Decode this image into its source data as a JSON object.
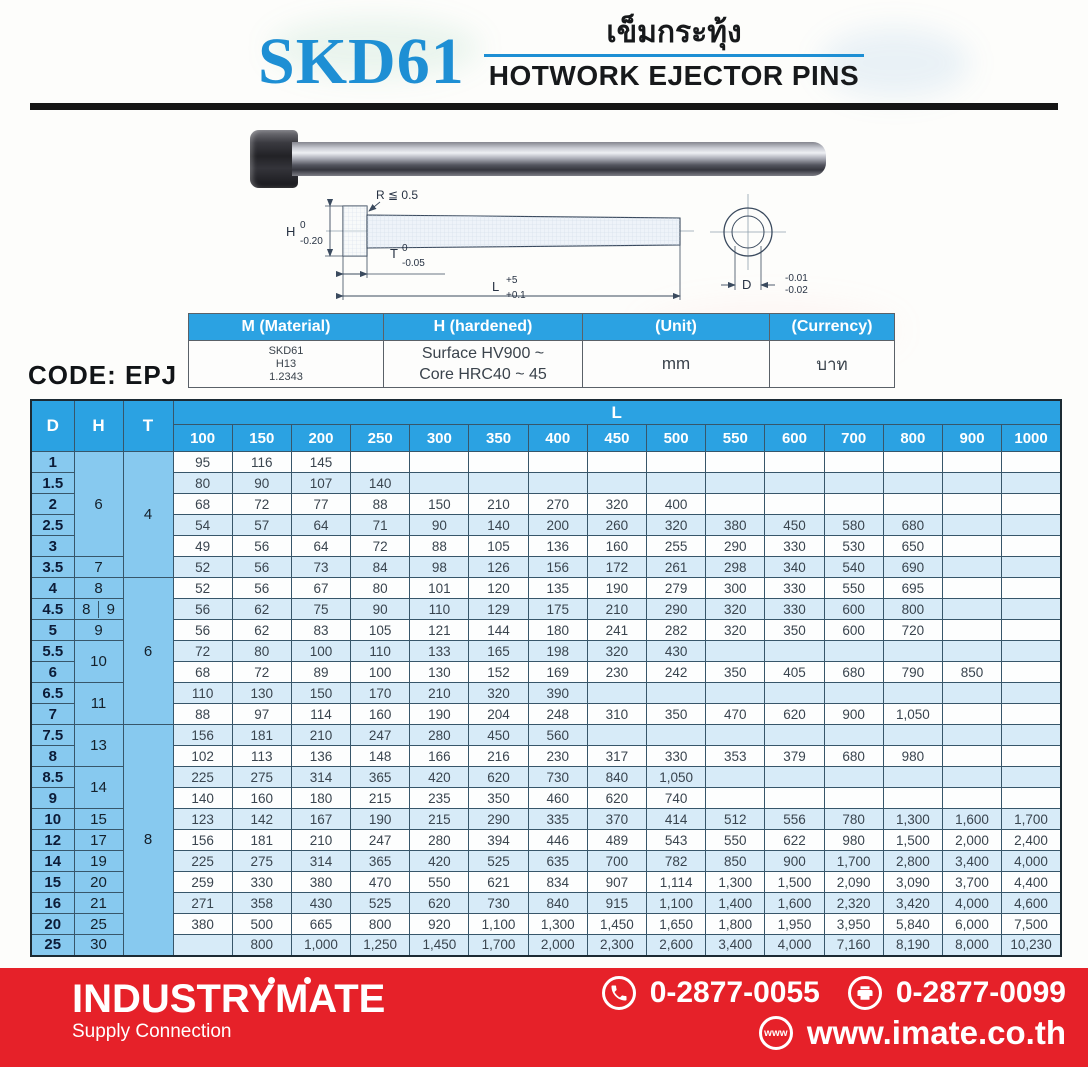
{
  "colors": {
    "brand_blue": "#1e8fd4",
    "table_header_blue": "#2ba2e2",
    "cell_blue": "#87c9ef",
    "row_blue": "#d7ebf8",
    "footer_red": "#e62129"
  },
  "header": {
    "brand": "SKD61",
    "title_thai": "เข็มกระทุ้ง",
    "title_en": "HOTWORK EJECTOR PINS"
  },
  "diagram": {
    "r_label": "R ≦ 0.5",
    "h_label": "H",
    "h_tol_top": "0",
    "h_tol_bottom": "-0.20",
    "t_label": "T",
    "t_tol_top": "0",
    "t_tol_bottom": "-0.05",
    "l_label": "L",
    "l_tol_top": "+5",
    "l_tol_bottom": "+0.1",
    "d_label": "D",
    "d_tol_top": "-0.01",
    "d_tol_bottom": "-0.02"
  },
  "spec_table": {
    "headers": [
      "M (Material)",
      "H (hardened)",
      "(Unit)",
      "(Currency)"
    ],
    "material_lines": [
      "SKD61",
      "H13",
      "1.2343"
    ],
    "hardened_lines": [
      "Surface HV900 ~",
      "Core HRC40 ~ 45"
    ],
    "unit": "mm",
    "currency": "บาท"
  },
  "code_label": "CODE: EPJ",
  "price_table": {
    "col_d": "D",
    "col_h": "H",
    "col_t": "T",
    "col_l": "L",
    "lengths": [
      "100",
      "150",
      "200",
      "250",
      "300",
      "350",
      "400",
      "450",
      "500",
      "550",
      "600",
      "700",
      "800",
      "900",
      "1000"
    ],
    "rows": [
      {
        "d": "1",
        "h": {
          "text": "6",
          "span": 5
        },
        "t": {
          "text": "4",
          "span": 6
        },
        "v": [
          "95",
          "116",
          "145",
          "",
          "",
          "",
          "",
          "",
          "",
          "",
          "",
          "",
          "",
          "",
          ""
        ]
      },
      {
        "d": "1.5",
        "v": [
          "80",
          "90",
          "107",
          "140",
          "",
          "",
          "",
          "",
          "",
          "",
          "",
          "",
          "",
          "",
          ""
        ]
      },
      {
        "d": "2",
        "v": [
          "68",
          "72",
          "77",
          "88",
          "150",
          "210",
          "270",
          "320",
          "400",
          "",
          "",
          "",
          "",
          "",
          ""
        ]
      },
      {
        "d": "2.5",
        "v": [
          "54",
          "57",
          "64",
          "71",
          "90",
          "140",
          "200",
          "260",
          "320",
          "380",
          "450",
          "580",
          "680",
          "",
          ""
        ]
      },
      {
        "d": "3",
        "v": [
          "49",
          "56",
          "64",
          "72",
          "88",
          "105",
          "136",
          "160",
          "255",
          "290",
          "330",
          "530",
          "650",
          "",
          ""
        ]
      },
      {
        "d": "3.5",
        "h": {
          "text": "7",
          "span": 1
        },
        "v": [
          "52",
          "56",
          "73",
          "84",
          "98",
          "126",
          "156",
          "172",
          "261",
          "298",
          "340",
          "540",
          "690",
          "",
          ""
        ]
      },
      {
        "d": "4",
        "h": {
          "text": "8",
          "span": 1
        },
        "t": {
          "text": "6",
          "span": 7
        },
        "v": [
          "52",
          "56",
          "67",
          "80",
          "101",
          "120",
          "135",
          "190",
          "279",
          "300",
          "330",
          "550",
          "695",
          "",
          ""
        ]
      },
      {
        "d": "4.5",
        "h_split": [
          "8",
          "9"
        ],
        "v": [
          "56",
          "62",
          "75",
          "90",
          "110",
          "129",
          "175",
          "210",
          "290",
          "320",
          "330",
          "600",
          "800",
          "",
          ""
        ]
      },
      {
        "d": "5",
        "h": {
          "text": "9",
          "span": 1
        },
        "v": [
          "56",
          "62",
          "83",
          "105",
          "121",
          "144",
          "180",
          "241",
          "282",
          "320",
          "350",
          "600",
          "720",
          "",
          ""
        ]
      },
      {
        "d": "5.5",
        "h": {
          "text": "10",
          "span": 2
        },
        "v": [
          "72",
          "80",
          "100",
          "110",
          "133",
          "165",
          "198",
          "320",
          "430",
          "",
          "",
          "",
          "",
          "",
          ""
        ]
      },
      {
        "d": "6",
        "v": [
          "68",
          "72",
          "89",
          "100",
          "130",
          "152",
          "169",
          "230",
          "242",
          "350",
          "405",
          "680",
          "790",
          "850",
          ""
        ]
      },
      {
        "d": "6.5",
        "h": {
          "text": "11",
          "span": 2
        },
        "v": [
          "110",
          "130",
          "150",
          "170",
          "210",
          "320",
          "390",
          "",
          "",
          "",
          "",
          "",
          "",
          "",
          ""
        ]
      },
      {
        "d": "7",
        "v": [
          "88",
          "97",
          "114",
          "160",
          "190",
          "204",
          "248",
          "310",
          "350",
          "470",
          "620",
          "900",
          "1,050",
          "",
          ""
        ]
      },
      {
        "d": "7.5",
        "h": {
          "text": "13",
          "span": 2
        },
        "t": {
          "text": "8",
          "span": 11
        },
        "v": [
          "156",
          "181",
          "210",
          "247",
          "280",
          "450",
          "560",
          "",
          "",
          "",
          "",
          "",
          "",
          "",
          ""
        ]
      },
      {
        "d": "8",
        "v": [
          "102",
          "113",
          "136",
          "148",
          "166",
          "216",
          "230",
          "317",
          "330",
          "353",
          "379",
          "680",
          "980",
          "",
          ""
        ]
      },
      {
        "d": "8.5",
        "h": {
          "text": "14",
          "span": 2
        },
        "v": [
          "225",
          "275",
          "314",
          "365",
          "420",
          "620",
          "730",
          "840",
          "1,050",
          "",
          "",
          "",
          "",
          "",
          ""
        ]
      },
      {
        "d": "9",
        "v": [
          "140",
          "160",
          "180",
          "215",
          "235",
          "350",
          "460",
          "620",
          "740",
          "",
          "",
          "",
          "",
          "",
          ""
        ]
      },
      {
        "d": "10",
        "h": {
          "text": "15",
          "span": 1
        },
        "v": [
          "123",
          "142",
          "167",
          "190",
          "215",
          "290",
          "335",
          "370",
          "414",
          "512",
          "556",
          "780",
          "1,300",
          "1,600",
          "1,700"
        ]
      },
      {
        "d": "12",
        "h": {
          "text": "17",
          "span": 1
        },
        "v": [
          "156",
          "181",
          "210",
          "247",
          "280",
          "394",
          "446",
          "489",
          "543",
          "550",
          "622",
          "980",
          "1,500",
          "2,000",
          "2,400"
        ]
      },
      {
        "d": "14",
        "h": {
          "text": "19",
          "span": 1
        },
        "v": [
          "225",
          "275",
          "314",
          "365",
          "420",
          "525",
          "635",
          "700",
          "782",
          "850",
          "900",
          "1,700",
          "2,800",
          "3,400",
          "4,000"
        ]
      },
      {
        "d": "15",
        "h": {
          "text": "20",
          "span": 1
        },
        "v": [
          "259",
          "330",
          "380",
          "470",
          "550",
          "621",
          "834",
          "907",
          "1,114",
          "1,300",
          "1,500",
          "2,090",
          "3,090",
          "3,700",
          "4,400"
        ]
      },
      {
        "d": "16",
        "h": {
          "text": "21",
          "span": 1
        },
        "v": [
          "271",
          "358",
          "430",
          "525",
          "620",
          "730",
          "840",
          "915",
          "1,100",
          "1,400",
          "1,600",
          "2,320",
          "3,420",
          "4,000",
          "4,600"
        ]
      },
      {
        "d": "20",
        "h": {
          "text": "25",
          "span": 1
        },
        "v": [
          "380",
          "500",
          "665",
          "800",
          "920",
          "1,100",
          "1,300",
          "1,450",
          "1,650",
          "1,800",
          "1,950",
          "3,950",
          "5,840",
          "6,000",
          "7,500"
        ]
      },
      {
        "d": "25",
        "h": {
          "text": "30",
          "span": 1
        },
        "v": [
          "",
          "800",
          "1,000",
          "1,250",
          "1,450",
          "1,700",
          "2,000",
          "2,300",
          "2,600",
          "3,400",
          "4,000",
          "7,160",
          "8,190",
          "8,000",
          "10,230"
        ]
      }
    ]
  },
  "footer": {
    "logo": "INDUSTRYMATE",
    "tagline": "Supply Connection",
    "phone": "0-2877-0055",
    "fax": "0-2877-0099",
    "website": "www.imate.co.th"
  }
}
